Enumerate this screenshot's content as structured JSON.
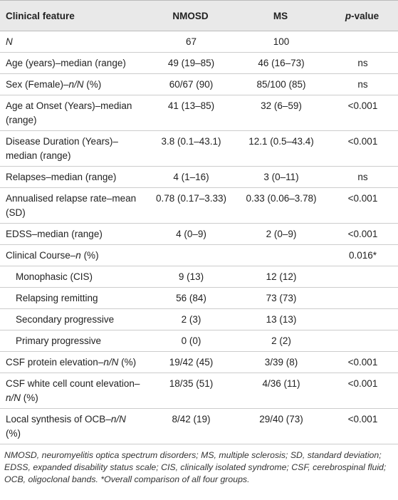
{
  "table": {
    "header": [
      "Clinical feature",
      "NMOSD",
      "MS",
      [
        {
          "text": "p",
          "italic": true
        },
        "-value"
      ]
    ],
    "rows": [
      [
        [
          {
            "text": "N",
            "italic": true
          }
        ],
        "67",
        "100",
        null
      ],
      [
        "Age (years)–median (range)",
        "49 (19–85)",
        "46 (16–73)",
        "ns"
      ],
      [
        [
          "Sex (Female)–",
          {
            "text": "n/N",
            "italic": true
          },
          " (%)"
        ],
        "60/67 (90)",
        "85/100 (85)",
        "ns"
      ],
      [
        "Age at Onset (Years)–median (range)",
        "41 (13–85)",
        "32 (6–59)",
        "<0.001"
      ],
      [
        "Disease Duration (Years)–median (range)",
        "3.8 (0.1–43.1)",
        "12.1 (0.5–43.4)",
        "<0.001"
      ],
      [
        "Relapses–median (range)",
        "4 (1–16)",
        "3 (0–11)",
        "ns"
      ],
      [
        "Annualised relapse rate–mean (SD)",
        "0.78 (0.17–3.33)",
        "0.33 (0.06–3.78)",
        "<0.001"
      ],
      [
        "EDSS–median (range)",
        "4 (0–9)",
        "2 (0–9)",
        "<0.001"
      ],
      [
        [
          "Clinical Course–",
          {
            "text": "n",
            "italic": true
          },
          " (%)"
        ],
        null,
        null,
        "0.016*"
      ],
      [
        "Monophasic (CIS)",
        "9 (13)",
        "12 (12)",
        null
      ],
      [
        "Relapsing remitting",
        "56 (84)",
        "73 (73)",
        null
      ],
      [
        "Secondary progressive",
        "2 (3)",
        "13 (13)",
        null
      ],
      [
        "Primary progressive",
        "0 (0)",
        "2 (2)",
        null
      ],
      [
        [
          "CSF protein elevation–",
          {
            "text": "n/N",
            "italic": true
          },
          " (%)"
        ],
        "19/42 (45)",
        "3/39 (8)",
        "<0.001"
      ],
      [
        [
          "CSF white cell count elevation–",
          {
            "text": "n/N",
            "italic": true
          },
          " (%)"
        ],
        "18/35 (51)",
        "4/36 (11)",
        "<0.001"
      ],
      [
        [
          "Local synthesis of OCB–",
          {
            "text": "n/N",
            "italic": true
          },
          " (%)"
        ],
        "8/42 (19)",
        "29/40 (73)",
        "<0.001"
      ]
    ],
    "indented_rows": [
      9,
      10,
      11,
      12
    ]
  },
  "footnote": "NMOSD, neuromyelitis optica spectrum disorders; MS, multiple sclerosis; SD, standard deviation; EDSS, expanded disability status scale; CIS, clinically isolated syndrome; CSF, cerebrospinal fluid; OCB, oligoclonal bands. *Overall comparison of all four groups."
}
